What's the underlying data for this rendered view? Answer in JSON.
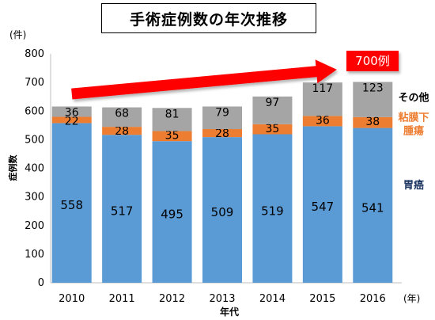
{
  "chart_data": {
    "type": "bar",
    "stacked": true,
    "title": "手術症例数の年次推移",
    "xlabel": "年代",
    "ylabel": "症例数",
    "y_unit": "(件)",
    "x_unit": "(年)",
    "categories": [
      "2010",
      "2011",
      "2012",
      "2013",
      "2014",
      "2015",
      "2016"
    ],
    "ylim": [
      0,
      800
    ],
    "yticks": [
      0,
      100,
      200,
      300,
      400,
      500,
      600,
      700,
      800
    ],
    "grid": false,
    "series": [
      {
        "name": "胃癌",
        "color": "#5b9bd5",
        "label_color": "#1f3864",
        "values": [
          558,
          517,
          495,
          509,
          519,
          547,
          541
        ]
      },
      {
        "name": "粘膜下腫瘍",
        "label_lines": [
          "粘膜下",
          "腫瘍"
        ],
        "color": "#ed7d31",
        "label_color": "#ed7d31",
        "values": [
          22,
          28,
          35,
          28,
          35,
          36,
          38
        ]
      },
      {
        "name": "その他",
        "color": "#a5a5a5",
        "label_color": "#000000",
        "values": [
          36,
          68,
          81,
          79,
          97,
          117,
          123
        ]
      }
    ],
    "annotation": {
      "text": "700例",
      "box_color": "#ff0000",
      "arrow_color": "#ff0000",
      "arrow_from_value": 660,
      "arrow_to_value": 745
    }
  }
}
